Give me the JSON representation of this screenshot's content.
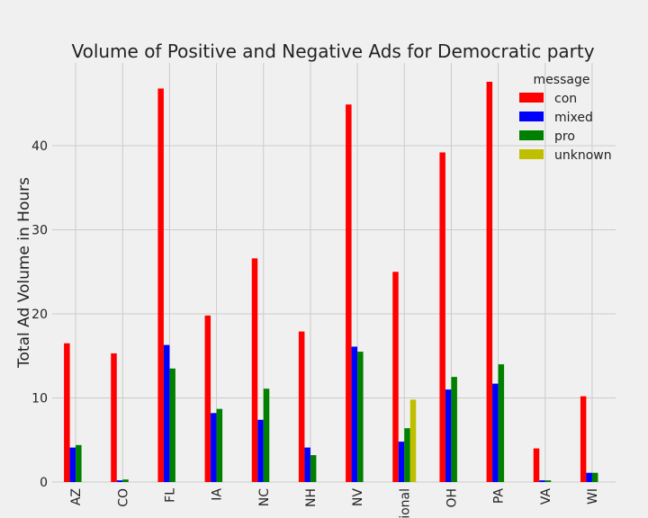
{
  "chart_data": {
    "type": "bar",
    "title": "Volume of Positive and Negative Ads for Democratic party",
    "xlabel": "",
    "ylabel": "Total Ad Volume in Hours",
    "ylim": [
      0,
      50
    ],
    "yticks": [
      0,
      10,
      20,
      30,
      40
    ],
    "ytick_labels": [
      "0",
      "10",
      "20",
      "30",
      "40"
    ],
    "grid": true,
    "legend_title": "message",
    "legend_position": "top-right",
    "categories": [
      "AZ",
      "CO",
      "FL",
      "IA",
      "NC",
      "NH",
      "NV",
      "National",
      "OH",
      "PA",
      "VA",
      "WI"
    ],
    "series": [
      {
        "name": "con",
        "color": "#ff0000",
        "values": [
          16.5,
          15.3,
          46.8,
          19.8,
          26.6,
          17.9,
          44.9,
          25.0,
          39.2,
          47.6,
          4.0,
          10.2
        ]
      },
      {
        "name": "mixed",
        "color": "#0000ff",
        "values": [
          4.1,
          0.2,
          16.3,
          8.2,
          7.4,
          4.1,
          16.1,
          4.8,
          11.0,
          11.7,
          0.2,
          1.1
        ]
      },
      {
        "name": "pro",
        "color": "#008000",
        "values": [
          4.4,
          0.3,
          13.5,
          8.7,
          11.1,
          3.2,
          15.5,
          6.4,
          12.5,
          14.0,
          0.2,
          1.1
        ]
      },
      {
        "name": "unknown",
        "color": "#bfbf00",
        "values": [
          0,
          0,
          0,
          0,
          0,
          0,
          0,
          9.8,
          0,
          0,
          0,
          0
        ]
      }
    ]
  }
}
